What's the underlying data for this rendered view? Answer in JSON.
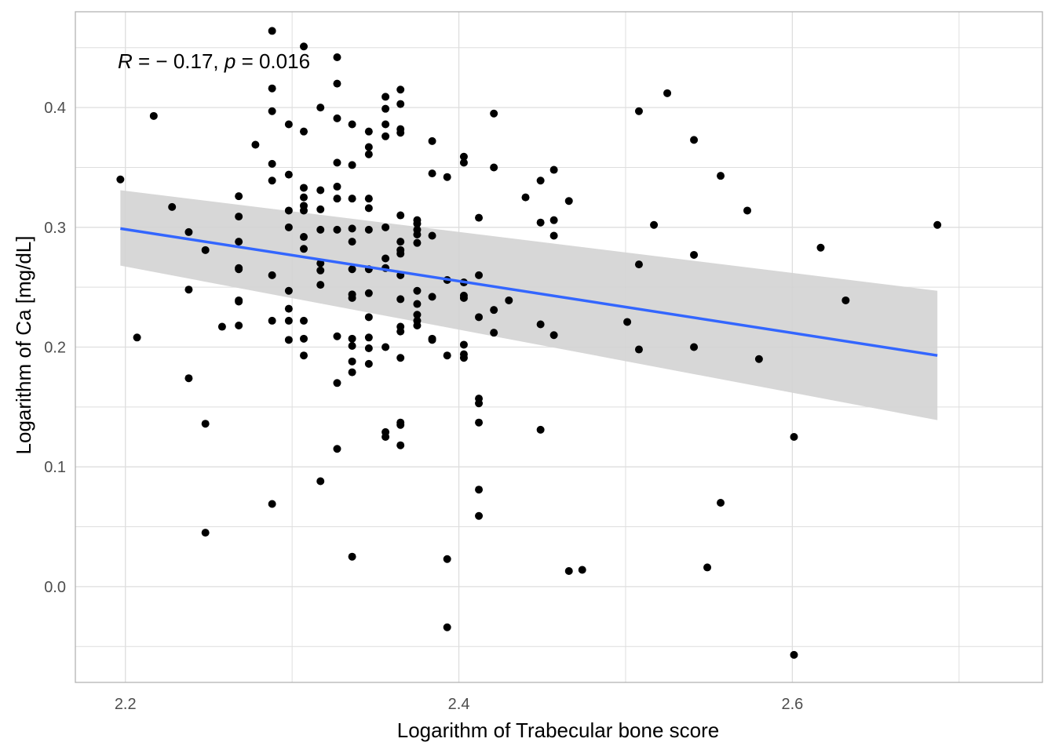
{
  "chart_data": {
    "type": "scatter",
    "title": "",
    "xlabel": "Logarithm of Trabecular bone score",
    "ylabel": "Logarithm of Ca [mg/dL]",
    "xlim": [
      2.17,
      2.75
    ],
    "ylim": [
      -0.08,
      0.48
    ],
    "x_ticks": [
      2.2,
      2.4,
      2.6
    ],
    "x_tick_labels": [
      "2.2",
      "2.4",
      "2.6"
    ],
    "y_ticks": [
      0.0,
      0.1,
      0.2,
      0.3,
      0.4
    ],
    "y_tick_labels": [
      "0.0",
      "0.1",
      "0.2",
      "0.3",
      "0.4"
    ],
    "grid": true,
    "annotation": {
      "r_symbol": "R",
      "r_text": " = − 0.17, ",
      "p_symbol": "p",
      "p_text": " = 0.016"
    },
    "regression": {
      "x": [
        2.197,
        2.687
      ],
      "y": [
        0.299,
        0.193
      ],
      "ci_lower": [
        0.268,
        0.139
      ],
      "ci_upper": [
        0.331,
        0.247
      ]
    },
    "colors": {
      "points": "#000000",
      "line": "#3366ff",
      "band": "#d3d3d3",
      "grid": "#dedede",
      "panel_border": "#b3b3b3"
    },
    "points": [
      [
        2.197,
        0.34
      ],
      [
        2.207,
        0.208
      ],
      [
        2.217,
        0.393
      ],
      [
        2.228,
        0.317
      ],
      [
        2.238,
        0.296
      ],
      [
        2.238,
        0.248
      ],
      [
        2.238,
        0.174
      ],
      [
        2.248,
        0.281
      ],
      [
        2.248,
        0.136
      ],
      [
        2.248,
        0.045
      ],
      [
        2.258,
        0.217
      ],
      [
        2.268,
        0.326
      ],
      [
        2.268,
        0.309
      ],
      [
        2.268,
        0.288
      ],
      [
        2.268,
        0.265
      ],
      [
        2.268,
        0.266
      ],
      [
        2.268,
        0.239
      ],
      [
        2.268,
        0.238
      ],
      [
        2.268,
        0.218
      ],
      [
        2.278,
        0.369
      ],
      [
        2.288,
        0.464
      ],
      [
        2.288,
        0.416
      ],
      [
        2.288,
        0.397
      ],
      [
        2.288,
        0.353
      ],
      [
        2.288,
        0.339
      ],
      [
        2.288,
        0.26
      ],
      [
        2.288,
        0.222
      ],
      [
        2.288,
        0.069
      ],
      [
        2.298,
        0.386
      ],
      [
        2.298,
        0.344
      ],
      [
        2.298,
        0.314
      ],
      [
        2.298,
        0.3
      ],
      [
        2.298,
        0.247
      ],
      [
        2.298,
        0.232
      ],
      [
        2.298,
        0.222
      ],
      [
        2.298,
        0.206
      ],
      [
        2.307,
        0.451
      ],
      [
        2.307,
        0.38
      ],
      [
        2.307,
        0.333
      ],
      [
        2.307,
        0.325
      ],
      [
        2.307,
        0.318
      ],
      [
        2.307,
        0.314
      ],
      [
        2.307,
        0.292
      ],
      [
        2.307,
        0.282
      ],
      [
        2.307,
        0.222
      ],
      [
        2.307,
        0.207
      ],
      [
        2.307,
        0.193
      ],
      [
        2.317,
        0.4
      ],
      [
        2.317,
        0.331
      ],
      [
        2.317,
        0.315
      ],
      [
        2.317,
        0.298
      ],
      [
        2.317,
        0.27
      ],
      [
        2.317,
        0.264
      ],
      [
        2.317,
        0.252
      ],
      [
        2.317,
        0.088
      ],
      [
        2.327,
        0.442
      ],
      [
        2.327,
        0.42
      ],
      [
        2.327,
        0.391
      ],
      [
        2.327,
        0.354
      ],
      [
        2.327,
        0.334
      ],
      [
        2.327,
        0.324
      ],
      [
        2.327,
        0.298
      ],
      [
        2.327,
        0.209
      ],
      [
        2.327,
        0.17
      ],
      [
        2.327,
        0.115
      ],
      [
        2.336,
        0.386
      ],
      [
        2.336,
        0.352
      ],
      [
        2.336,
        0.324
      ],
      [
        2.336,
        0.299
      ],
      [
        2.336,
        0.288
      ],
      [
        2.336,
        0.265
      ],
      [
        2.336,
        0.244
      ],
      [
        2.336,
        0.241
      ],
      [
        2.336,
        0.207
      ],
      [
        2.336,
        0.201
      ],
      [
        2.336,
        0.188
      ],
      [
        2.336,
        0.179
      ],
      [
        2.336,
        0.025
      ],
      [
        2.346,
        0.38
      ],
      [
        2.346,
        0.367
      ],
      [
        2.346,
        0.361
      ],
      [
        2.346,
        0.324
      ],
      [
        2.346,
        0.316
      ],
      [
        2.346,
        0.298
      ],
      [
        2.346,
        0.265
      ],
      [
        2.346,
        0.245
      ],
      [
        2.346,
        0.225
      ],
      [
        2.346,
        0.208
      ],
      [
        2.346,
        0.199
      ],
      [
        2.346,
        0.186
      ],
      [
        2.356,
        0.409
      ],
      [
        2.356,
        0.399
      ],
      [
        2.356,
        0.386
      ],
      [
        2.356,
        0.376
      ],
      [
        2.356,
        0.3
      ],
      [
        2.356,
        0.274
      ],
      [
        2.356,
        0.266
      ],
      [
        2.356,
        0.2
      ],
      [
        2.356,
        0.129
      ],
      [
        2.356,
        0.125
      ],
      [
        2.365,
        0.415
      ],
      [
        2.365,
        0.403
      ],
      [
        2.365,
        0.382
      ],
      [
        2.365,
        0.379
      ],
      [
        2.365,
        0.31
      ],
      [
        2.365,
        0.288
      ],
      [
        2.365,
        0.281
      ],
      [
        2.365,
        0.278
      ],
      [
        2.365,
        0.26
      ],
      [
        2.365,
        0.24
      ],
      [
        2.365,
        0.217
      ],
      [
        2.365,
        0.213
      ],
      [
        2.365,
        0.191
      ],
      [
        2.365,
        0.137
      ],
      [
        2.365,
        0.135
      ],
      [
        2.365,
        0.118
      ],
      [
        2.375,
        0.306
      ],
      [
        2.375,
        0.303
      ],
      [
        2.375,
        0.298
      ],
      [
        2.375,
        0.294
      ],
      [
        2.375,
        0.287
      ],
      [
        2.375,
        0.247
      ],
      [
        2.375,
        0.236
      ],
      [
        2.375,
        0.227
      ],
      [
        2.375,
        0.222
      ],
      [
        2.375,
        0.218
      ],
      [
        2.384,
        0.372
      ],
      [
        2.384,
        0.345
      ],
      [
        2.384,
        0.293
      ],
      [
        2.384,
        0.242
      ],
      [
        2.384,
        0.207
      ],
      [
        2.384,
        0.206
      ],
      [
        2.393,
        0.342
      ],
      [
        2.393,
        0.256
      ],
      [
        2.393,
        0.193
      ],
      [
        2.393,
        0.023
      ],
      [
        2.393,
        -0.034
      ],
      [
        2.403,
        0.359
      ],
      [
        2.403,
        0.354
      ],
      [
        2.403,
        0.254
      ],
      [
        2.403,
        0.243
      ],
      [
        2.403,
        0.241
      ],
      [
        2.403,
        0.202
      ],
      [
        2.403,
        0.194
      ],
      [
        2.403,
        0.191
      ],
      [
        2.412,
        0.308
      ],
      [
        2.412,
        0.26
      ],
      [
        2.412,
        0.225
      ],
      [
        2.412,
        0.157
      ],
      [
        2.412,
        0.153
      ],
      [
        2.412,
        0.137
      ],
      [
        2.412,
        0.081
      ],
      [
        2.412,
        0.059
      ],
      [
        2.421,
        0.395
      ],
      [
        2.421,
        0.35
      ],
      [
        2.421,
        0.231
      ],
      [
        2.421,
        0.212
      ],
      [
        2.43,
        0.239
      ],
      [
        2.44,
        0.325
      ],
      [
        2.449,
        0.339
      ],
      [
        2.449,
        0.304
      ],
      [
        2.449,
        0.219
      ],
      [
        2.449,
        0.131
      ],
      [
        2.457,
        0.348
      ],
      [
        2.457,
        0.306
      ],
      [
        2.457,
        0.293
      ],
      [
        2.457,
        0.21
      ],
      [
        2.466,
        0.322
      ],
      [
        2.466,
        0.013
      ],
      [
        2.474,
        0.014
      ],
      [
        2.501,
        0.221
      ],
      [
        2.508,
        0.397
      ],
      [
        2.508,
        0.269
      ],
      [
        2.508,
        0.198
      ],
      [
        2.517,
        0.302
      ],
      [
        2.525,
        0.412
      ],
      [
        2.541,
        0.373
      ],
      [
        2.541,
        0.277
      ],
      [
        2.541,
        0.2
      ],
      [
        2.549,
        0.016
      ],
      [
        2.557,
        0.343
      ],
      [
        2.557,
        0.07
      ],
      [
        2.573,
        0.314
      ],
      [
        2.58,
        0.19
      ],
      [
        2.601,
        0.125
      ],
      [
        2.601,
        -0.057
      ],
      [
        2.617,
        0.283
      ],
      [
        2.632,
        0.239
      ],
      [
        2.687,
        0.302
      ]
    ]
  }
}
